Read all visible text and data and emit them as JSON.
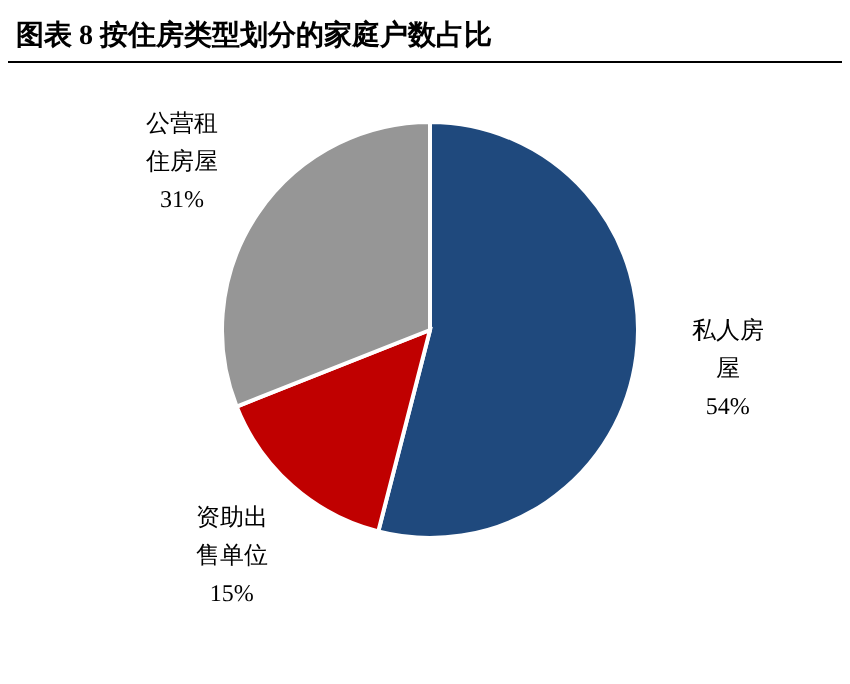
{
  "chart_data": {
    "type": "pie",
    "title": "图表 8 按住房类型划分的家庭户数占比",
    "categories": [
      "私人房屋",
      "资助出售单位",
      "公营租住房屋"
    ],
    "values": [
      54,
      15,
      31
    ],
    "colors": [
      "#1f497d",
      "#c00000",
      "#969696"
    ],
    "value_labels": [
      "54%",
      "15%",
      "31%"
    ]
  }
}
